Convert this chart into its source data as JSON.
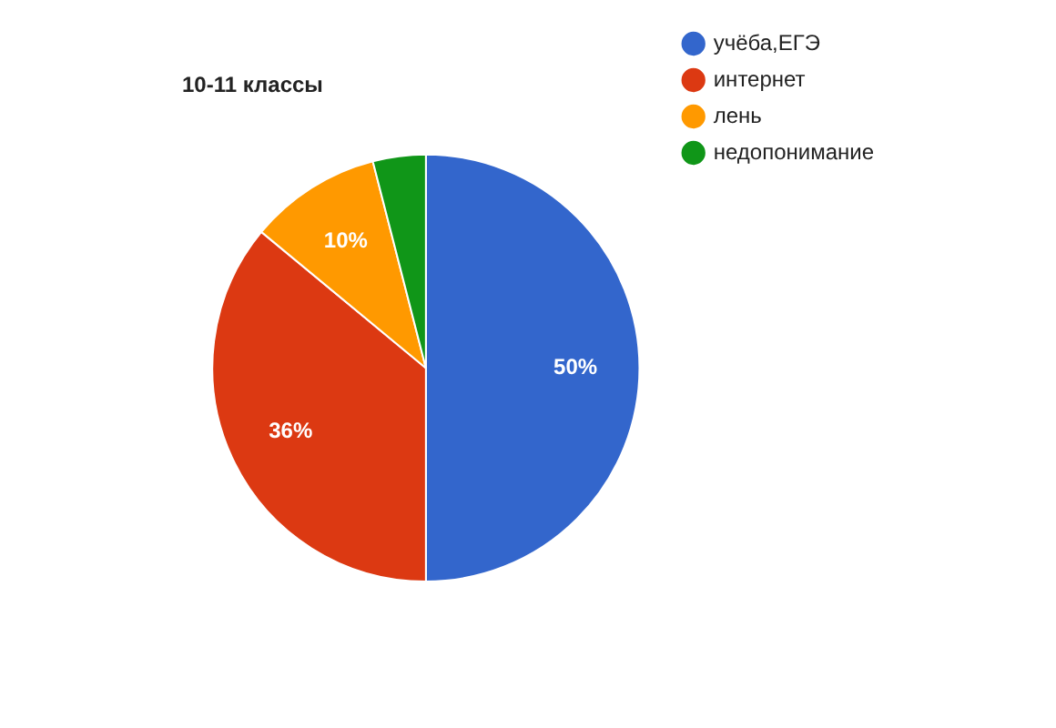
{
  "chart_data": {
    "type": "pie",
    "title": "10-11 классы",
    "categories": [
      "учёба,ЕГЭ",
      "интернет",
      "лень",
      "недопонимание"
    ],
    "values": [
      50,
      36,
      10,
      4
    ],
    "colors": [
      "#3366cc",
      "#dc3912",
      "#ff9900",
      "#109618"
    ],
    "value_labels": [
      "50%",
      "36%",
      "10%",
      null
    ],
    "legend": "right"
  }
}
